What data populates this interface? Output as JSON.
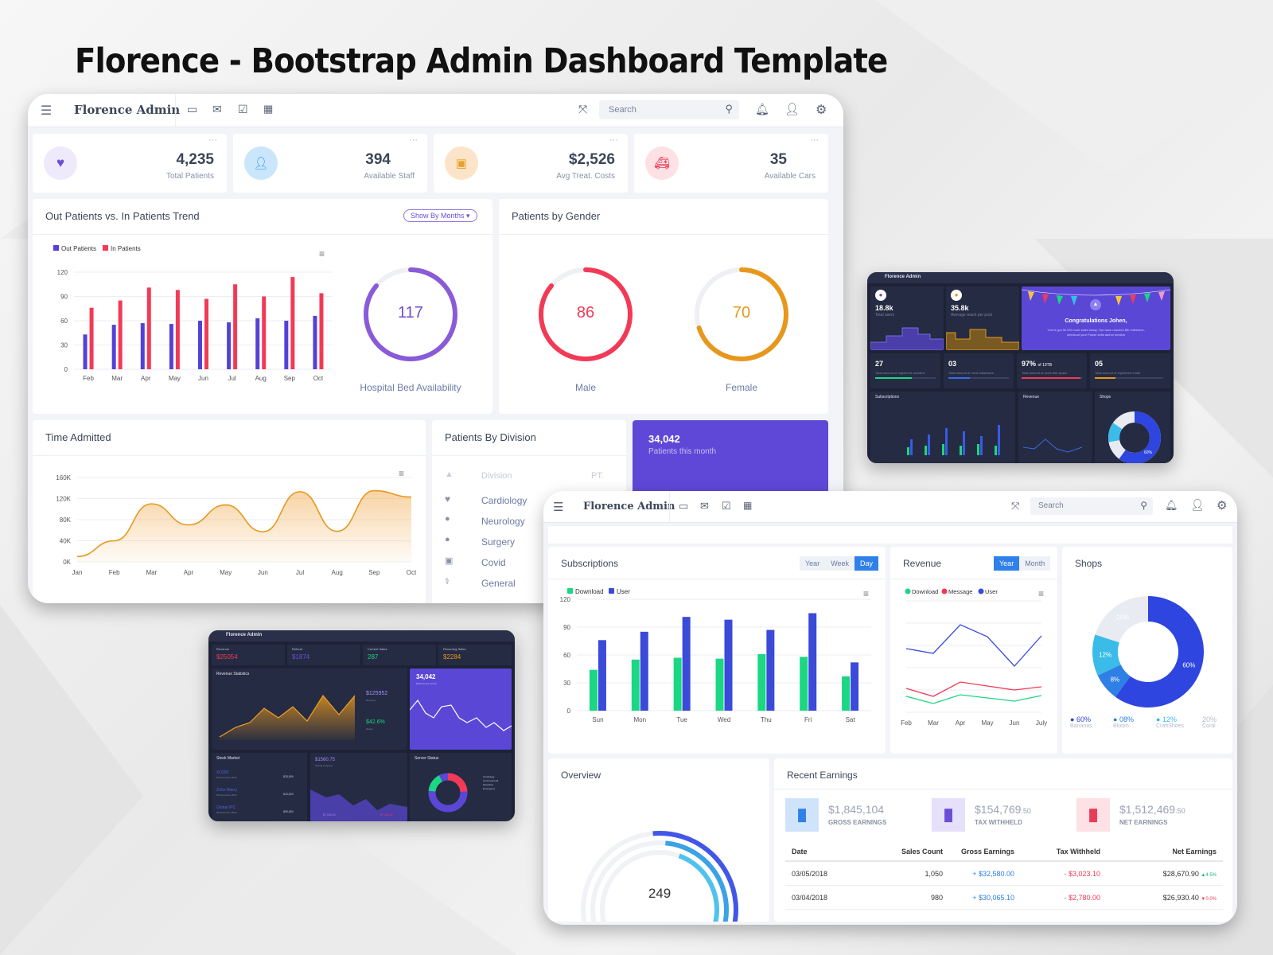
{
  "page_title": "Florence - Bootstrap Admin Dashboard Template",
  "brand": "Florence Admin",
  "search_placeholder": "Search",
  "colors": {
    "primary": "#5f3fd3",
    "blue": "#3a4ad9",
    "red": "#f23a57",
    "orange": "#e7981c",
    "green": "#1bd683",
    "cyan": "#33c0ea"
  },
  "screen1": {
    "stats": [
      {
        "icon": "heartbeat-icon",
        "value": "4,235",
        "label": "Total Patients",
        "color": "#6a4fd6",
        "bg": "#efeafb"
      },
      {
        "icon": "staff-icon",
        "value": "394",
        "label": "Available Staff",
        "color": "#2d8fe8",
        "bg": "#c9e6fb"
      },
      {
        "icon": "money-icon",
        "value": "$2,526",
        "label": "Avg Treat. Costs",
        "color": "#e9a12b",
        "bg": "#fbe4c7"
      },
      {
        "icon": "ambulance-icon",
        "value": "35",
        "label": "Available Cars",
        "color": "#ec3b55",
        "bg": "#fde1e5"
      }
    ],
    "trend": {
      "title": "Out Patients vs. In Patients Trend",
      "dropdown": "Show By Months"
    },
    "bed": {
      "value": "117",
      "label": "Hospital Bed Availability",
      "fraction": 0.86
    },
    "gender": {
      "title": "Patients by Gender",
      "male": {
        "value": "86",
        "label": "Male",
        "fraction": 0.86
      },
      "female": {
        "value": "70",
        "label": "Female",
        "fraction": 0.7
      }
    },
    "time_title": "Time Admitted",
    "division": {
      "title": "Patients By Division",
      "header": "Division",
      "header2": "PT.",
      "rows": [
        "Cardiology",
        "Neurology",
        "Surgery",
        "Covid",
        "General"
      ]
    },
    "month_card": {
      "value": "34,042",
      "label": "Patients this month"
    }
  },
  "screen2": {
    "subs": {
      "title": "Subscriptions",
      "tabs": [
        "Year",
        "Week",
        "Day"
      ],
      "active": "Day"
    },
    "revenue": {
      "title": "Revenue",
      "tabs": [
        "Year",
        "Month"
      ],
      "active": "Year"
    },
    "shops": {
      "title": "Shops",
      "legend": [
        {
          "pct": "60%",
          "name": "Bananas",
          "color": "#2e45e0"
        },
        {
          "pct": "08%",
          "name": "Bloom",
          "color": "#2e7fe6"
        },
        {
          "pct": "12%",
          "name": "CraftShoes",
          "color": "#3bbce8"
        },
        {
          "pct": "20%",
          "name": "Coral",
          "color": "#e8ebf2"
        }
      ]
    },
    "overview": {
      "title": "Overview",
      "value": "249"
    },
    "earnings": {
      "title": "Recent Earnings",
      "summary": [
        {
          "icon": "bar-chart-icon",
          "value": "$1,845,104",
          "label": "GROSS EARNINGS",
          "color": "#2f80e8",
          "bg": "#cfe4fb"
        },
        {
          "icon": "bar-chart-icon",
          "value": "$154,769",
          "cents": ".50",
          "label": "TAX WITHHELD",
          "color": "#6a4fd6",
          "bg": "#e6e0fa"
        },
        {
          "icon": "bar-chart-icon",
          "value": "$1,512,469",
          "cents": ".50",
          "label": "NET EARNINGS",
          "color": "#ec3b55",
          "bg": "#fde1e5"
        }
      ],
      "columns": [
        "Date",
        "Sales Count",
        "Gross Earnings",
        "Tax Withheld",
        "Net Earnings"
      ],
      "rows": [
        {
          "date": "03/05/2018",
          "count": "1,050",
          "gross": "+ $32,580.00",
          "tax": "- $3,023.10",
          "net": "$28,670.90",
          "change": "4.5%",
          "up": true
        },
        {
          "date": "03/04/2018",
          "count": "980",
          "gross": "+ $30,065.10",
          "tax": "- $2,780.00",
          "net": "$26,930.40",
          "change": "0.0%",
          "up": false
        }
      ]
    }
  },
  "dark1": {
    "stats": [
      {
        "value": "18.8k",
        "label": "Total users"
      },
      {
        "value": "35.8k",
        "label": "Average reach per post"
      }
    ],
    "congrats": {
      "title": "Congratulations Johen,",
      "text": "You've got 50.5% more sales today. You have reached 8th milestone, checkout your Power shits author section"
    },
    "stats2": [
      {
        "value": "27",
        "label": "Total amount of registered domains"
      },
      {
        "value": "03",
        "label": "Total amount of used databases"
      },
      {
        "value": "97%",
        "suffix": "of 10TB",
        "label": "Total amount of used disk space"
      },
      {
        "value": "05",
        "label": "Total amount of registered email"
      }
    ],
    "panels": [
      "Subscriptions",
      "Revenue",
      "Shops"
    ],
    "donut_label": "60%"
  },
  "dark2": {
    "stats": [
      {
        "label": "Revenue",
        "value": "$25054"
      },
      {
        "label": "Refund",
        "value": "$1874"
      },
      {
        "label": "Current Sales",
        "value": "287"
      },
      {
        "label": "Recurring Sales",
        "value": "$2284"
      }
    ],
    "rev_title": "Revenue Statistics",
    "rev_side": [
      {
        "value": "$125952",
        "label": "Revenue"
      },
      {
        "value": "$42.6%",
        "label": "Return"
      }
    ],
    "month_card": {
      "value": "34,042",
      "label": "Patients this month"
    },
    "stock": {
      "title": "Stock Market",
      "rows": [
        {
          "name": "XU200",
          "date": "09 November 2016",
          "val": "$28,850"
        },
        {
          "name": "Zoho Warry",
          "date": "09 November 2016",
          "val": "$43,800"
        },
        {
          "name": "Global IPC",
          "date": "09 November 2016",
          "val": "$55,860"
        }
      ]
    },
    "saving": {
      "value": "$1560.75",
      "label": "Saving Progress",
      "left": "$7,164.40",
      "right": "$7,153.24"
    },
    "server": {
      "title": "Server Status",
      "legend": [
        "Cardiology",
        "Covid General",
        "Operation",
        "Emergency"
      ]
    }
  },
  "chart_data": [
    {
      "id": "out-in-trend",
      "type": "bar",
      "categories": [
        "Feb",
        "Mar",
        "Apr",
        "May",
        "Jun",
        "Jul",
        "Aug",
        "Sep",
        "Oct"
      ],
      "series": [
        {
          "name": "Out Patients",
          "values": [
            43,
            55,
            57,
            56,
            60,
            58,
            63,
            60,
            66
          ]
        },
        {
          "name": "In Patients",
          "values": [
            76,
            85,
            101,
            98,
            87,
            105,
            90,
            114,
            94
          ]
        }
      ],
      "ylim": [
        0,
        120
      ],
      "yticks": [
        0,
        30,
        60,
        90,
        120
      ]
    },
    {
      "id": "time-admitted",
      "type": "area",
      "categories": [
        "Jan",
        "Feb",
        "Mar",
        "Apr",
        "May",
        "Jun",
        "Jul",
        "Aug",
        "Sep",
        "Oct"
      ],
      "values": [
        10000,
        40000,
        110000,
        70000,
        108000,
        57000,
        133000,
        58000,
        135000,
        123000
      ],
      "ylim": [
        0,
        160000
      ],
      "yticks": [
        "0K",
        "40K",
        "80K",
        "120K",
        "160K"
      ]
    },
    {
      "id": "subscriptions",
      "type": "bar",
      "categories": [
        "Sun",
        "Mon",
        "Tue",
        "Wed",
        "Thu",
        "Fri",
        "Sat"
      ],
      "series": [
        {
          "name": "Download",
          "values": [
            44,
            55,
            57,
            56,
            61,
            58,
            37
          ]
        },
        {
          "name": "User",
          "values": [
            76,
            85,
            101,
            98,
            87,
            105,
            52
          ]
        }
      ],
      "ylim": [
        0,
        120
      ],
      "yticks": [
        0,
        30,
        60,
        90,
        120
      ]
    },
    {
      "id": "revenue",
      "type": "line",
      "categories": [
        "Feb",
        "Mar",
        "Apr",
        "May",
        "Jun",
        "July"
      ],
      "series": [
        {
          "name": "Download",
          "values": [
            20,
            11,
            22,
            18,
            14,
            21
          ]
        },
        {
          "name": "Message",
          "values": [
            30,
            20,
            38,
            33,
            28,
            32
          ]
        },
        {
          "name": "User",
          "values": [
            80,
            74,
            110,
            95,
            58,
            96
          ]
        }
      ],
      "ylim": [
        0,
        140
      ]
    },
    {
      "id": "shops",
      "type": "pie",
      "labels": [
        "Bananas",
        "Bloom",
        "CraftShoes",
        "Coral"
      ],
      "values": [
        60,
        8,
        12,
        20
      ],
      "slice_labels": [
        "60%",
        "8%",
        "12%",
        "20%"
      ]
    }
  ]
}
